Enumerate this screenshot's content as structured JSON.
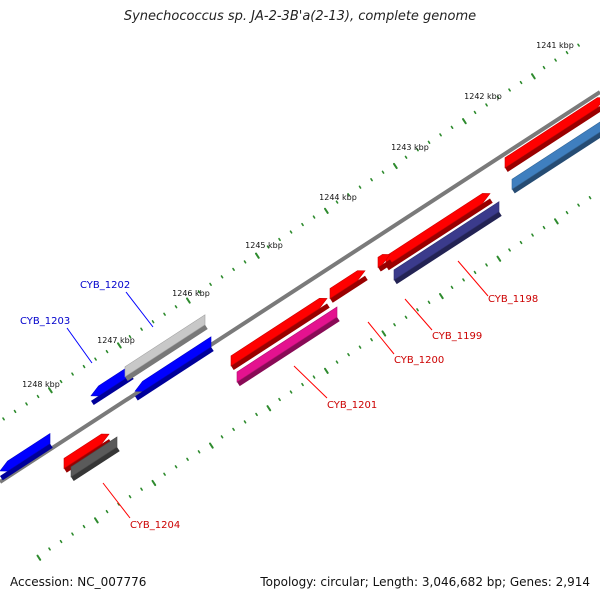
{
  "title": "Synechococcus sp. JA-2-3B'a(2-13), complete genome",
  "footer": {
    "accession": "Accession: NC_007776",
    "stats": "Topology: circular; Length: 3,046,682 bp; Genes: 2,914"
  },
  "ruler": {
    "ticks": [
      "1241 kbp",
      "1242 kbp",
      "1243 kbp",
      "1244 kbp",
      "1245 kbp",
      "1246 kbp",
      "1247 kbp",
      "1248 kbp"
    ],
    "dot_color": "#2e8b2e",
    "backbone_color": "#7a7a7a"
  },
  "genes": [
    {
      "label": "CYB_1198",
      "strand": "forward",
      "color": "#ff0000",
      "label_color": "#cc0000"
    },
    {
      "label": "CYB_1199",
      "strand": "forward",
      "color": "#ff0000",
      "label_color": "#cc0000"
    },
    {
      "label": "CYB_1200",
      "strand": "forward",
      "color": "#ff0000",
      "label_color": "#cc0000"
    },
    {
      "label": "CYB_1201",
      "strand": "forward",
      "color": "#ff0000",
      "label_color": "#cc0000"
    },
    {
      "label": "CYB_1202",
      "strand": "reverse",
      "color": "#0000ff",
      "label_color": "#0000cc"
    },
    {
      "label": "CYB_1203",
      "strand": "reverse",
      "color": "#0000ff",
      "label_color": "#0000cc"
    },
    {
      "label": "CYB_1204",
      "strand": "forward",
      "color": "#ff0000",
      "label_color": "#cc0000"
    }
  ],
  "features": {
    "cds_forward": "#e4128f",
    "cds_reverse": "#c8c8c8",
    "cds_dark": "#3b3b8c",
    "cds_steel": "#3f7fbf",
    "cds_gray": "#5a5a5a"
  }
}
